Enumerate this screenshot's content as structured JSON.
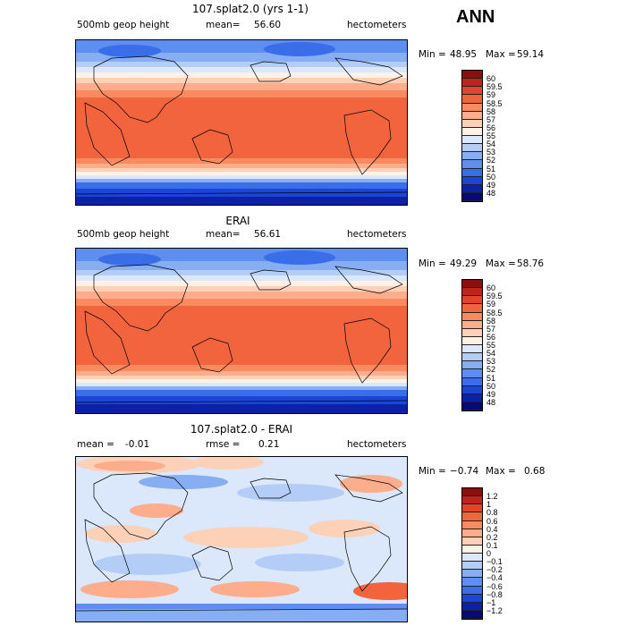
{
  "season": "ANN",
  "panels": [
    {
      "title": "107.splat2.0 (yrs 1-1)",
      "left_label": "500mb geop height",
      "mean_label": "mean=",
      "mean_value": "56.60",
      "units": "hectometers",
      "min_label": "Min =",
      "min_value": "48.95",
      "max_label": "Max =",
      "max_value": "59.14",
      "colorbar": {
        "levels": [
          "60",
          "59.5",
          "59",
          "58.5",
          "58",
          "57",
          "56",
          "55",
          "54",
          "53",
          "52",
          "51",
          "50",
          "49",
          "48"
        ],
        "colors": [
          "#8b0f0f",
          "#c0231c",
          "#e2432b",
          "#f2643d",
          "#fa8b61",
          "#fdad8c",
          "#fdd1b8",
          "#fff1e6",
          "#dbe8fb",
          "#b3cdf7",
          "#87aef2",
          "#5d8ef0",
          "#3a6de8",
          "#1b45d6",
          "#0d21a8",
          "#07087a"
        ]
      }
    },
    {
      "title": "ERAI",
      "left_label": "500mb geop height",
      "mean_label": "mean=",
      "mean_value": "56.61",
      "units": "hectometers",
      "min_label": "Min =",
      "min_value": "49.29",
      "max_label": "Max =",
      "max_value": "58.76",
      "colorbar": {
        "levels": [
          "60",
          "59.5",
          "59",
          "58.5",
          "58",
          "57",
          "56",
          "55",
          "54",
          "53",
          "52",
          "51",
          "50",
          "49",
          "48"
        ],
        "colors": [
          "#8b0f0f",
          "#c0231c",
          "#e2432b",
          "#f2643d",
          "#fa8b61",
          "#fdad8c",
          "#fdd1b8",
          "#fff1e6",
          "#dbe8fb",
          "#b3cdf7",
          "#87aef2",
          "#5d8ef0",
          "#3a6de8",
          "#1b45d6",
          "#0d21a8",
          "#07087a"
        ]
      }
    },
    {
      "title": "107.splat2.0 - ERAI",
      "left_label": "mean =",
      "left_value": "-0.01",
      "mean_label": "rmse =",
      "mean_value": "0.21",
      "units": "hectometers",
      "min_label": "Min =",
      "min_value": "−0.74",
      "max_label": "Max =",
      "max_value": "0.68",
      "colorbar": {
        "levels": [
          "1.2",
          "1",
          "0.8",
          "0.6",
          "0.4",
          "0.2",
          "0.1",
          "0",
          "−0.1",
          "−0.2",
          "−0.4",
          "−0.6",
          "−0.8",
          "−1",
          "−1.2"
        ],
        "colors": [
          "#8b0f0f",
          "#c0231c",
          "#e2432b",
          "#f2643d",
          "#fa8b61",
          "#fdad8c",
          "#fdd1b8",
          "#fff1e6",
          "#dbe8fb",
          "#b3cdf7",
          "#87aef2",
          "#5d8ef0",
          "#3a6de8",
          "#1b45d6",
          "#0d21a8",
          "#07087a"
        ]
      }
    }
  ]
}
